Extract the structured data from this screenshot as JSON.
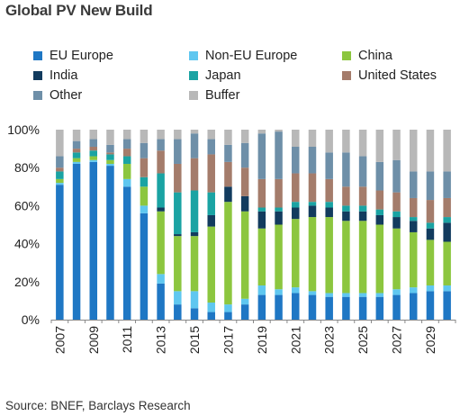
{
  "title": "Global PV New Build",
  "source": "Source: BNEF, Barclays Research",
  "chart_data": {
    "type": "bar",
    "stacked": true,
    "title": "Global PV New Build",
    "xlabel": "",
    "ylabel": "",
    "ylim": [
      0,
      100
    ],
    "yticks": [
      "0%",
      "20%",
      "40%",
      "60%",
      "80%",
      "100%"
    ],
    "xticks": [
      "2007",
      "2009",
      "2011",
      "2013",
      "2015",
      "2017",
      "2019",
      "2021",
      "2023",
      "2025",
      "2027",
      "2029"
    ],
    "grid": false,
    "legend_position": "top",
    "categories": [
      "2007",
      "2008",
      "2009",
      "2010",
      "2011",
      "2012",
      "2013",
      "2014",
      "2015",
      "2016",
      "2017",
      "2018",
      "2019",
      "2020",
      "2021",
      "2022",
      "2023",
      "2024",
      "2025",
      "2026",
      "2027",
      "2028",
      "2029",
      "2030"
    ],
    "series": [
      {
        "name": "EU Europe",
        "color": "#1f77c4",
        "values": [
          71,
          82,
          83,
          81,
          70,
          56,
          19,
          8,
          6,
          4,
          4,
          8,
          13,
          13,
          14,
          13,
          12,
          12,
          12,
          12,
          13,
          14,
          15,
          15
        ]
      },
      {
        "name": "Non-EU Europe",
        "color": "#5fc7f0",
        "values": [
          1,
          1,
          1,
          1,
          4,
          4,
          5,
          7,
          9,
          5,
          4,
          3,
          5,
          3,
          3,
          2,
          2,
          2,
          2,
          2,
          3,
          3,
          3,
          3
        ]
      },
      {
        "name": "China",
        "color": "#8cc63f",
        "values": [
          2,
          2,
          2,
          2,
          8,
          10,
          33,
          29,
          29,
          40,
          54,
          46,
          30,
          34,
          36,
          39,
          40,
          38,
          38,
          36,
          32,
          29,
          24,
          23
        ]
      },
      {
        "name": "India",
        "color": "#123b5e",
        "values": [
          0,
          0,
          0,
          0,
          0,
          0,
          2,
          1,
          2,
          6,
          8,
          8,
          9,
          7,
          6,
          6,
          5,
          5,
          5,
          5,
          6,
          6,
          6,
          10
        ]
      },
      {
        "name": "Japan",
        "color": "#1aa3a3",
        "values": [
          4,
          3,
          3,
          3,
          4,
          5,
          18,
          22,
          22,
          12,
          0,
          0,
          2,
          2,
          3,
          2,
          3,
          3,
          3,
          3,
          3,
          2,
          3,
          3
        ]
      },
      {
        "name": "United States",
        "color": "#a47c6b",
        "values": [
          2,
          2,
          2,
          1,
          4,
          10,
          12,
          15,
          17,
          20,
          13,
          15,
          15,
          15,
          15,
          15,
          12,
          10,
          10,
          10,
          10,
          10,
          12,
          10
        ]
      },
      {
        "name": "Other",
        "color": "#6e8fa8",
        "values": [
          6,
          4,
          4,
          4,
          5,
          8,
          6,
          13,
          13,
          8,
          9,
          13,
          24,
          25,
          14,
          14,
          14,
          18,
          16,
          15,
          17,
          14,
          15,
          14
        ]
      },
      {
        "name": "Buffer",
        "color": "#b8b8b8",
        "values": [
          14,
          6,
          5,
          8,
          5,
          7,
          5,
          5,
          2,
          5,
          8,
          7,
          2,
          1,
          9,
          9,
          12,
          12,
          14,
          17,
          16,
          22,
          22,
          22
        ]
      }
    ]
  }
}
